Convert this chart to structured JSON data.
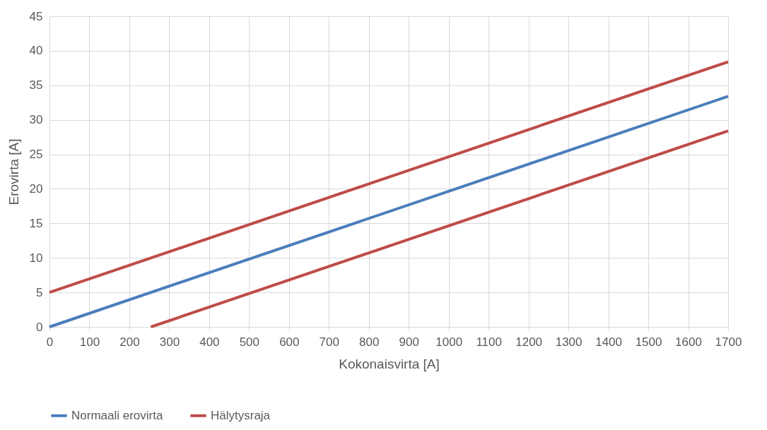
{
  "chart_data": {
    "type": "line",
    "xlabel": "Kokonaisvirta [A]",
    "ylabel": "Erovirta [A]",
    "xlim": [
      0,
      1700
    ],
    "xticks": [
      0,
      100,
      200,
      300,
      400,
      500,
      600,
      700,
      800,
      900,
      1000,
      1100,
      1200,
      1300,
      1400,
      1500,
      1600,
      1700
    ],
    "ylim": [
      0,
      45
    ],
    "yticks": [
      0,
      5,
      10,
      15,
      20,
      25,
      30,
      35,
      40,
      45
    ],
    "grid": true,
    "legend": "bottom",
    "marker": "none",
    "line_style": "solid",
    "series": [
      {
        "name": "Normaali erovirta",
        "color": "#4a7ebb",
        "x": [
          0,
          1700
        ],
        "values": [
          0,
          33.4
        ]
      },
      {
        "name": "Hälytysraja",
        "color": "#be4b48",
        "x": [
          0,
          1700
        ],
        "values": [
          5,
          38.4
        ]
      },
      {
        "color": "#be4b48",
        "x": [
          254,
          1700
        ],
        "values": [
          0,
          28.4
        ]
      }
    ]
  }
}
